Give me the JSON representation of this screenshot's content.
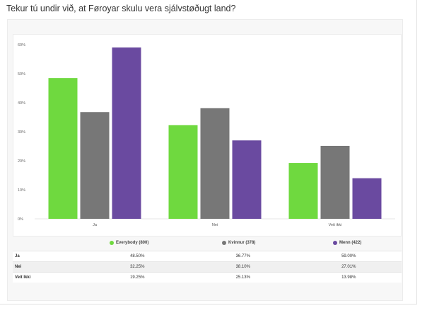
{
  "question": "Tekur tú undir við, at Føroyar skulu vera sjálvstøðugt land?",
  "chart_data": {
    "type": "bar",
    "categories": [
      "Ja",
      "Nei",
      "Veit ikki"
    ],
    "series": [
      {
        "name": "Everybody (800)",
        "color": "#6fd93f",
        "values": [
          48.5,
          32.25,
          19.25
        ]
      },
      {
        "name": "Kvinnur (378)",
        "color": "#777777",
        "values": [
          36.77,
          38.1,
          25.13
        ]
      },
      {
        "name": "Menn (422)",
        "color": "#6a4aa0",
        "values": [
          59.0,
          27.01,
          13.98
        ]
      }
    ],
    "ylim": [
      0,
      60
    ],
    "yticks": [
      "0%",
      "10%",
      "20%",
      "30%",
      "40%",
      "50%",
      "60%"
    ],
    "title": "Tekur tú undir við, at Føroyar skulu vera sjálvstøðugt land?",
    "grid": false
  },
  "table": {
    "rows": [
      {
        "label": "Ja",
        "values": [
          "48.50%",
          "36.77%",
          "59.00%"
        ]
      },
      {
        "label": "Nei",
        "values": [
          "32.25%",
          "38.10%",
          "27.01%"
        ]
      },
      {
        "label": "Veit Ikki",
        "values": [
          "19.25%",
          "25.13%",
          "13.98%"
        ]
      }
    ]
  }
}
